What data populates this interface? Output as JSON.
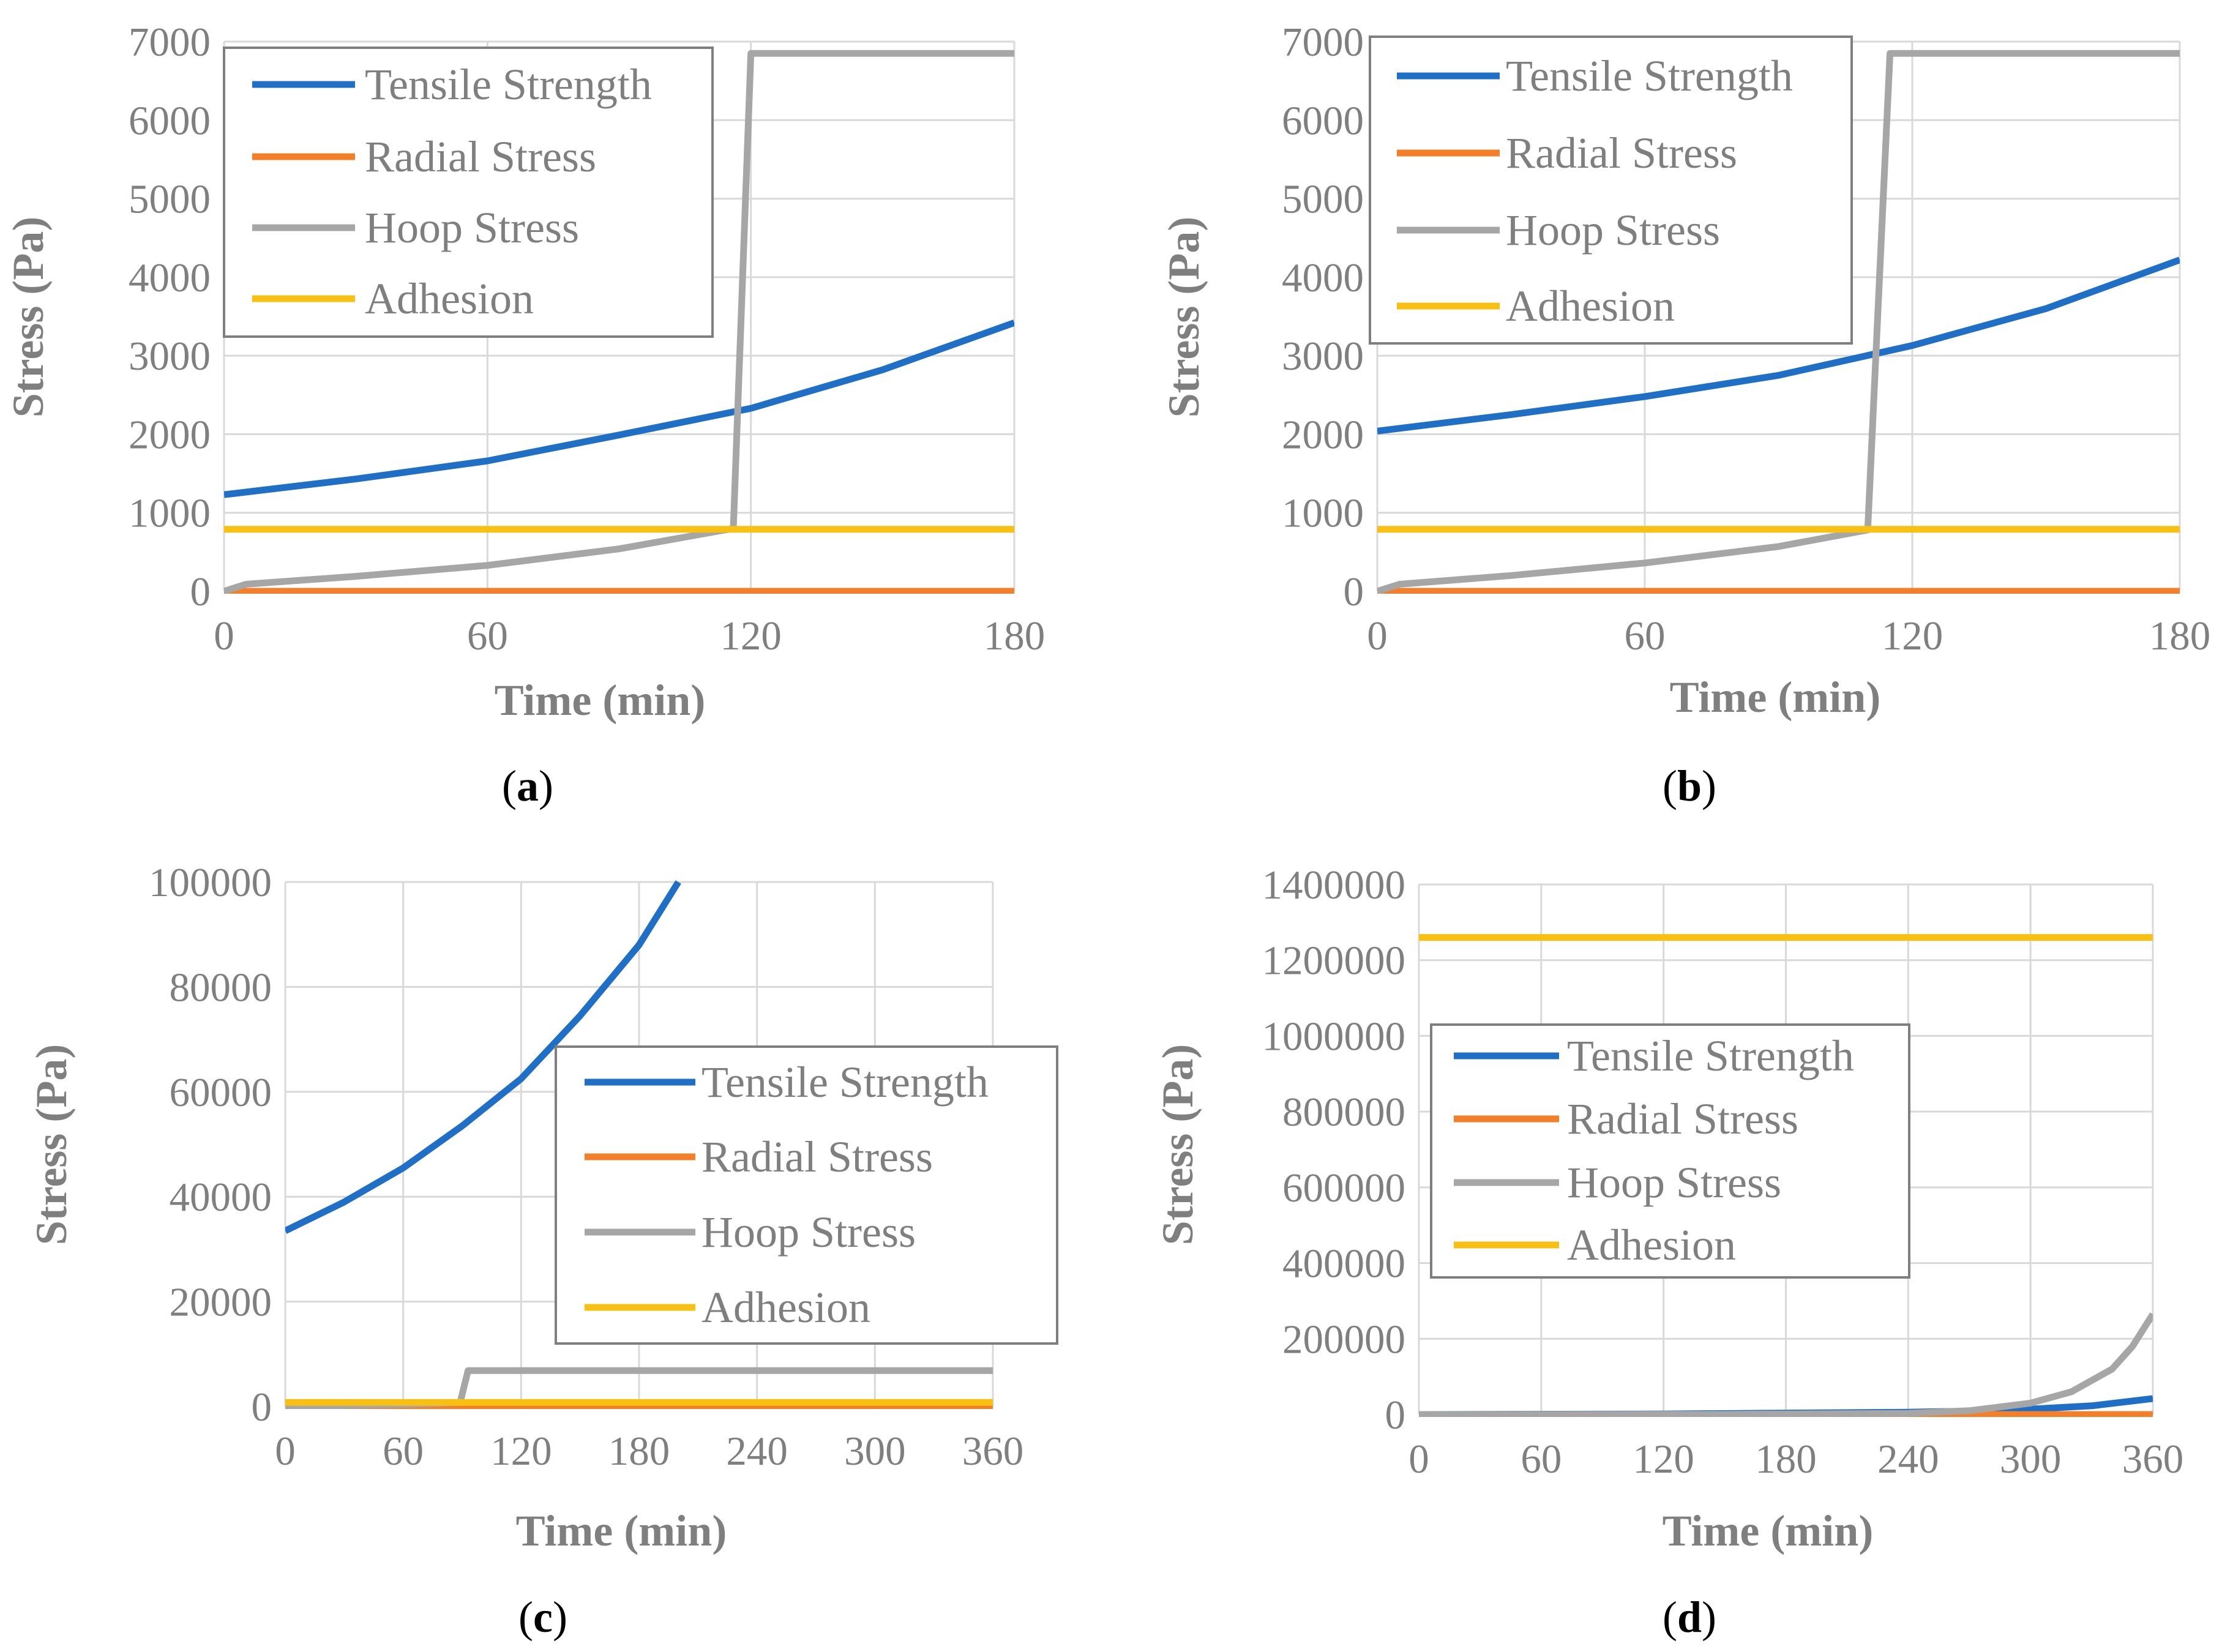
{
  "figure": {
    "colors": {
      "tensile": "#1f6fc6",
      "radial": "#f47f2a",
      "hoop": "#a6a6a6",
      "adhesion": "#f8c012",
      "grid": "#d9d9d9",
      "text": "#7f7f7f"
    }
  },
  "chart_data": [
    {
      "id": "a",
      "type": "line",
      "caption": {
        "open": "(",
        "letter": "a",
        "close": ")"
      },
      "xlabel": "Time (min)",
      "ylabel": "Stress (Pa)",
      "xlim": [
        0,
        180
      ],
      "ylim": [
        0,
        7000
      ],
      "xticks": [
        0,
        60,
        120,
        180
      ],
      "yticks": [
        0,
        1000,
        2000,
        3000,
        4000,
        5000,
        6000,
        7000
      ],
      "grid": true,
      "legend": {
        "position": "top-left",
        "entries": [
          "Tensile Strength",
          "Radial Stress",
          "Hoop Stress",
          "Adhesion"
        ]
      },
      "series": [
        {
          "name": "Tensile Strength",
          "color": "tensile",
          "points": [
            [
              0,
              1230
            ],
            [
              30,
              1430
            ],
            [
              60,
              1660
            ],
            [
              90,
              1990
            ],
            [
              120,
              2330
            ],
            [
              150,
              2820
            ],
            [
              180,
              3420
            ]
          ]
        },
        {
          "name": "Radial Stress",
          "color": "radial",
          "points": [
            [
              0,
              0
            ],
            [
              180,
              0
            ]
          ]
        },
        {
          "name": "Hoop Stress",
          "color": "hoop",
          "points": [
            [
              0,
              0
            ],
            [
              5,
              90
            ],
            [
              30,
              190
            ],
            [
              60,
              330
            ],
            [
              90,
              540
            ],
            [
              116,
              800
            ],
            [
              120,
              6850
            ],
            [
              180,
              6850
            ]
          ]
        },
        {
          "name": "Adhesion",
          "color": "adhesion",
          "points": [
            [
              0,
              790
            ],
            [
              180,
              790
            ]
          ]
        }
      ]
    },
    {
      "id": "b",
      "type": "line",
      "caption": {
        "open": "(",
        "letter": "b",
        "close": ")"
      },
      "xlabel": "Time (min)",
      "ylabel": "Stress (Pa)",
      "xlim": [
        0,
        180
      ],
      "ylim": [
        0,
        7000
      ],
      "xticks": [
        0,
        60,
        120,
        180
      ],
      "yticks": [
        0,
        1000,
        2000,
        3000,
        4000,
        5000,
        6000,
        7000
      ],
      "grid": true,
      "legend": {
        "position": "top-left",
        "entries": [
          "Tensile Strength",
          "Radial Stress",
          "Hoop Stress",
          "Adhesion"
        ]
      },
      "series": [
        {
          "name": "Tensile Strength",
          "color": "tensile",
          "points": [
            [
              0,
              2040
            ],
            [
              30,
              2250
            ],
            [
              60,
              2480
            ],
            [
              90,
              2750
            ],
            [
              120,
              3130
            ],
            [
              150,
              3600
            ],
            [
              180,
              4220
            ]
          ]
        },
        {
          "name": "Radial Stress",
          "color": "radial",
          "points": [
            [
              0,
              0
            ],
            [
              180,
              0
            ]
          ]
        },
        {
          "name": "Hoop Stress",
          "color": "hoop",
          "points": [
            [
              0,
              0
            ],
            [
              5,
              90
            ],
            [
              30,
              200
            ],
            [
              60,
              360
            ],
            [
              90,
              570
            ],
            [
              110,
              780
            ],
            [
              115,
              6850
            ],
            [
              180,
              6850
            ]
          ]
        },
        {
          "name": "Adhesion",
          "color": "adhesion",
          "points": [
            [
              0,
              790
            ],
            [
              180,
              790
            ]
          ]
        }
      ]
    },
    {
      "id": "c",
      "type": "line",
      "caption": {
        "open": "(",
        "letter": "c",
        "close": ")"
      },
      "xlabel": "Time (min)",
      "ylabel": "Stress (Pa)",
      "xlim": [
        0,
        360
      ],
      "ylim": [
        0,
        100000
      ],
      "xticks": [
        0,
        60,
        120,
        180,
        240,
        300,
        360
      ],
      "yticks": [
        0,
        20000,
        40000,
        60000,
        80000,
        100000
      ],
      "grid": true,
      "legend": {
        "position": "center-right",
        "entries": [
          "Tensile Strength",
          "Radial Stress",
          "Hoop Stress",
          "Adhesion"
        ]
      },
      "series": [
        {
          "name": "Tensile Strength",
          "color": "tensile",
          "points": [
            [
              0,
              33500
            ],
            [
              30,
              39000
            ],
            [
              60,
              45500
            ],
            [
              90,
              53500
            ],
            [
              120,
              62500
            ],
            [
              150,
              74500
            ],
            [
              180,
              88000
            ],
            [
              200,
              100000
            ]
          ]
        },
        {
          "name": "Radial Stress",
          "color": "radial",
          "points": [
            [
              0,
              0
            ],
            [
              360,
              0
            ]
          ]
        },
        {
          "name": "Hoop Stress",
          "color": "hoop",
          "points": [
            [
              0,
              0
            ],
            [
              30,
              200
            ],
            [
              60,
              400
            ],
            [
              89,
              790
            ],
            [
              93,
              6850
            ],
            [
              360,
              6850
            ]
          ]
        },
        {
          "name": "Adhesion",
          "color": "adhesion",
          "points": [
            [
              0,
              790
            ],
            [
              360,
              790
            ]
          ]
        }
      ]
    },
    {
      "id": "d",
      "type": "line",
      "caption": {
        "open": "(",
        "letter": "d",
        "close": ")"
      },
      "xlabel": "Time (min)",
      "ylabel": "Stress (Pa)",
      "xlim": [
        0,
        360
      ],
      "ylim": [
        0,
        1400000
      ],
      "xticks": [
        0,
        60,
        120,
        180,
        240,
        300,
        360
      ],
      "yticks": [
        0,
        200000,
        400000,
        600000,
        800000,
        1000000,
        1200000,
        1400000
      ],
      "grid": true,
      "legend": {
        "position": "center-left",
        "entries": [
          "Tensile Strength",
          "Radial Stress",
          "Hoop Stress",
          "Adhesion"
        ]
      },
      "series": [
        {
          "name": "Tensile Strength",
          "color": "tensile",
          "points": [
            [
              0,
              0
            ],
            [
              120,
              1500
            ],
            [
              240,
              6000
            ],
            [
              270,
              9000
            ],
            [
              300,
              14000
            ],
            [
              330,
              23000
            ],
            [
              360,
              42000
            ]
          ]
        },
        {
          "name": "Radial Stress",
          "color": "radial",
          "points": [
            [
              0,
              0
            ],
            [
              360,
              0
            ]
          ]
        },
        {
          "name": "Hoop Stress",
          "color": "hoop",
          "points": [
            [
              0,
              0
            ],
            [
              150,
              500
            ],
            [
              240,
              3000
            ],
            [
              270,
              10000
            ],
            [
              300,
              30000
            ],
            [
              320,
              60000
            ],
            [
              340,
              120000
            ],
            [
              350,
              180000
            ],
            [
              360,
              265000
            ]
          ]
        },
        {
          "name": "Adhesion",
          "color": "adhesion",
          "points": [
            [
              0,
              1260000
            ],
            [
              360,
              1260000
            ]
          ]
        }
      ]
    }
  ]
}
